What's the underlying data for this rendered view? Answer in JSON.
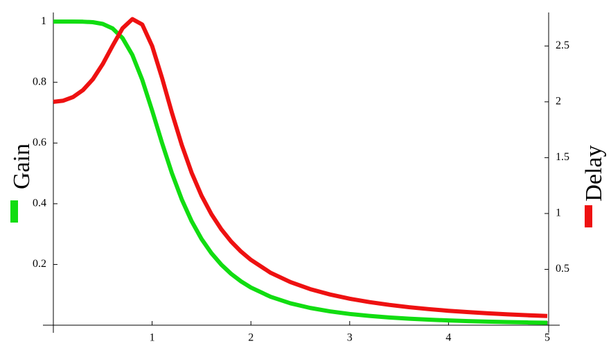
{
  "chart_data": {
    "type": "line",
    "x": [
      0,
      0.1,
      0.2,
      0.3,
      0.4,
      0.5,
      0.6,
      0.7,
      0.8,
      0.9,
      1.0,
      1.1,
      1.2,
      1.3,
      1.4,
      1.5,
      1.6,
      1.7,
      1.8,
      1.9,
      2.0,
      2.2,
      2.4,
      2.6,
      2.8,
      3.0,
      3.2,
      3.4,
      3.6,
      3.8,
      4.0,
      4.2,
      4.4,
      4.6,
      4.8,
      5.0
    ],
    "series": [
      {
        "name": "Gain",
        "color": "#11dd11",
        "axis": "y",
        "values": [
          1,
          1,
          1,
          0.9996,
          0.998,
          0.9923,
          0.9775,
          0.9459,
          0.8901,
          0.8081,
          0.7071,
          0.6007,
          0.5009,
          0.4143,
          0.3424,
          0.2841,
          0.2372,
          0.1995,
          0.169,
          0.1443,
          0.124,
          0.0935,
          0.0721,
          0.0568,
          0.0455,
          0.037,
          0.0305,
          0.0254,
          0.0214,
          0.0182,
          0.0156,
          0.0135,
          0.0117,
          0.0103,
          0.009,
          0.008
        ]
      },
      {
        "name": "Delay",
        "color": "#ee1111",
        "axis": "y2",
        "values": [
          2,
          2.01,
          2.043,
          2.105,
          2.202,
          2.338,
          2.502,
          2.658,
          2.741,
          2.692,
          2.5,
          2.215,
          1.903,
          1.614,
          1.365,
          1.16,
          0.994,
          0.859,
          0.749,
          0.659,
          0.585,
          0.469,
          0.386,
          0.323,
          0.275,
          0.237,
          0.207,
          0.182,
          0.161,
          0.144,
          0.129,
          0.117,
          0.106,
          0.097,
          0.089,
          0.082
        ]
      }
    ],
    "xlim": [
      0,
      5
    ],
    "xticks": [
      1,
      2,
      3,
      4,
      5
    ],
    "ylim": [
      0,
      1.03
    ],
    "yticks": [
      0.2,
      0.4,
      0.6,
      0.8,
      1
    ],
    "y2lim": [
      0,
      2.8
    ],
    "y2ticks": [
      0.5,
      1,
      1.5,
      2,
      2.5
    ],
    "grid": false
  }
}
